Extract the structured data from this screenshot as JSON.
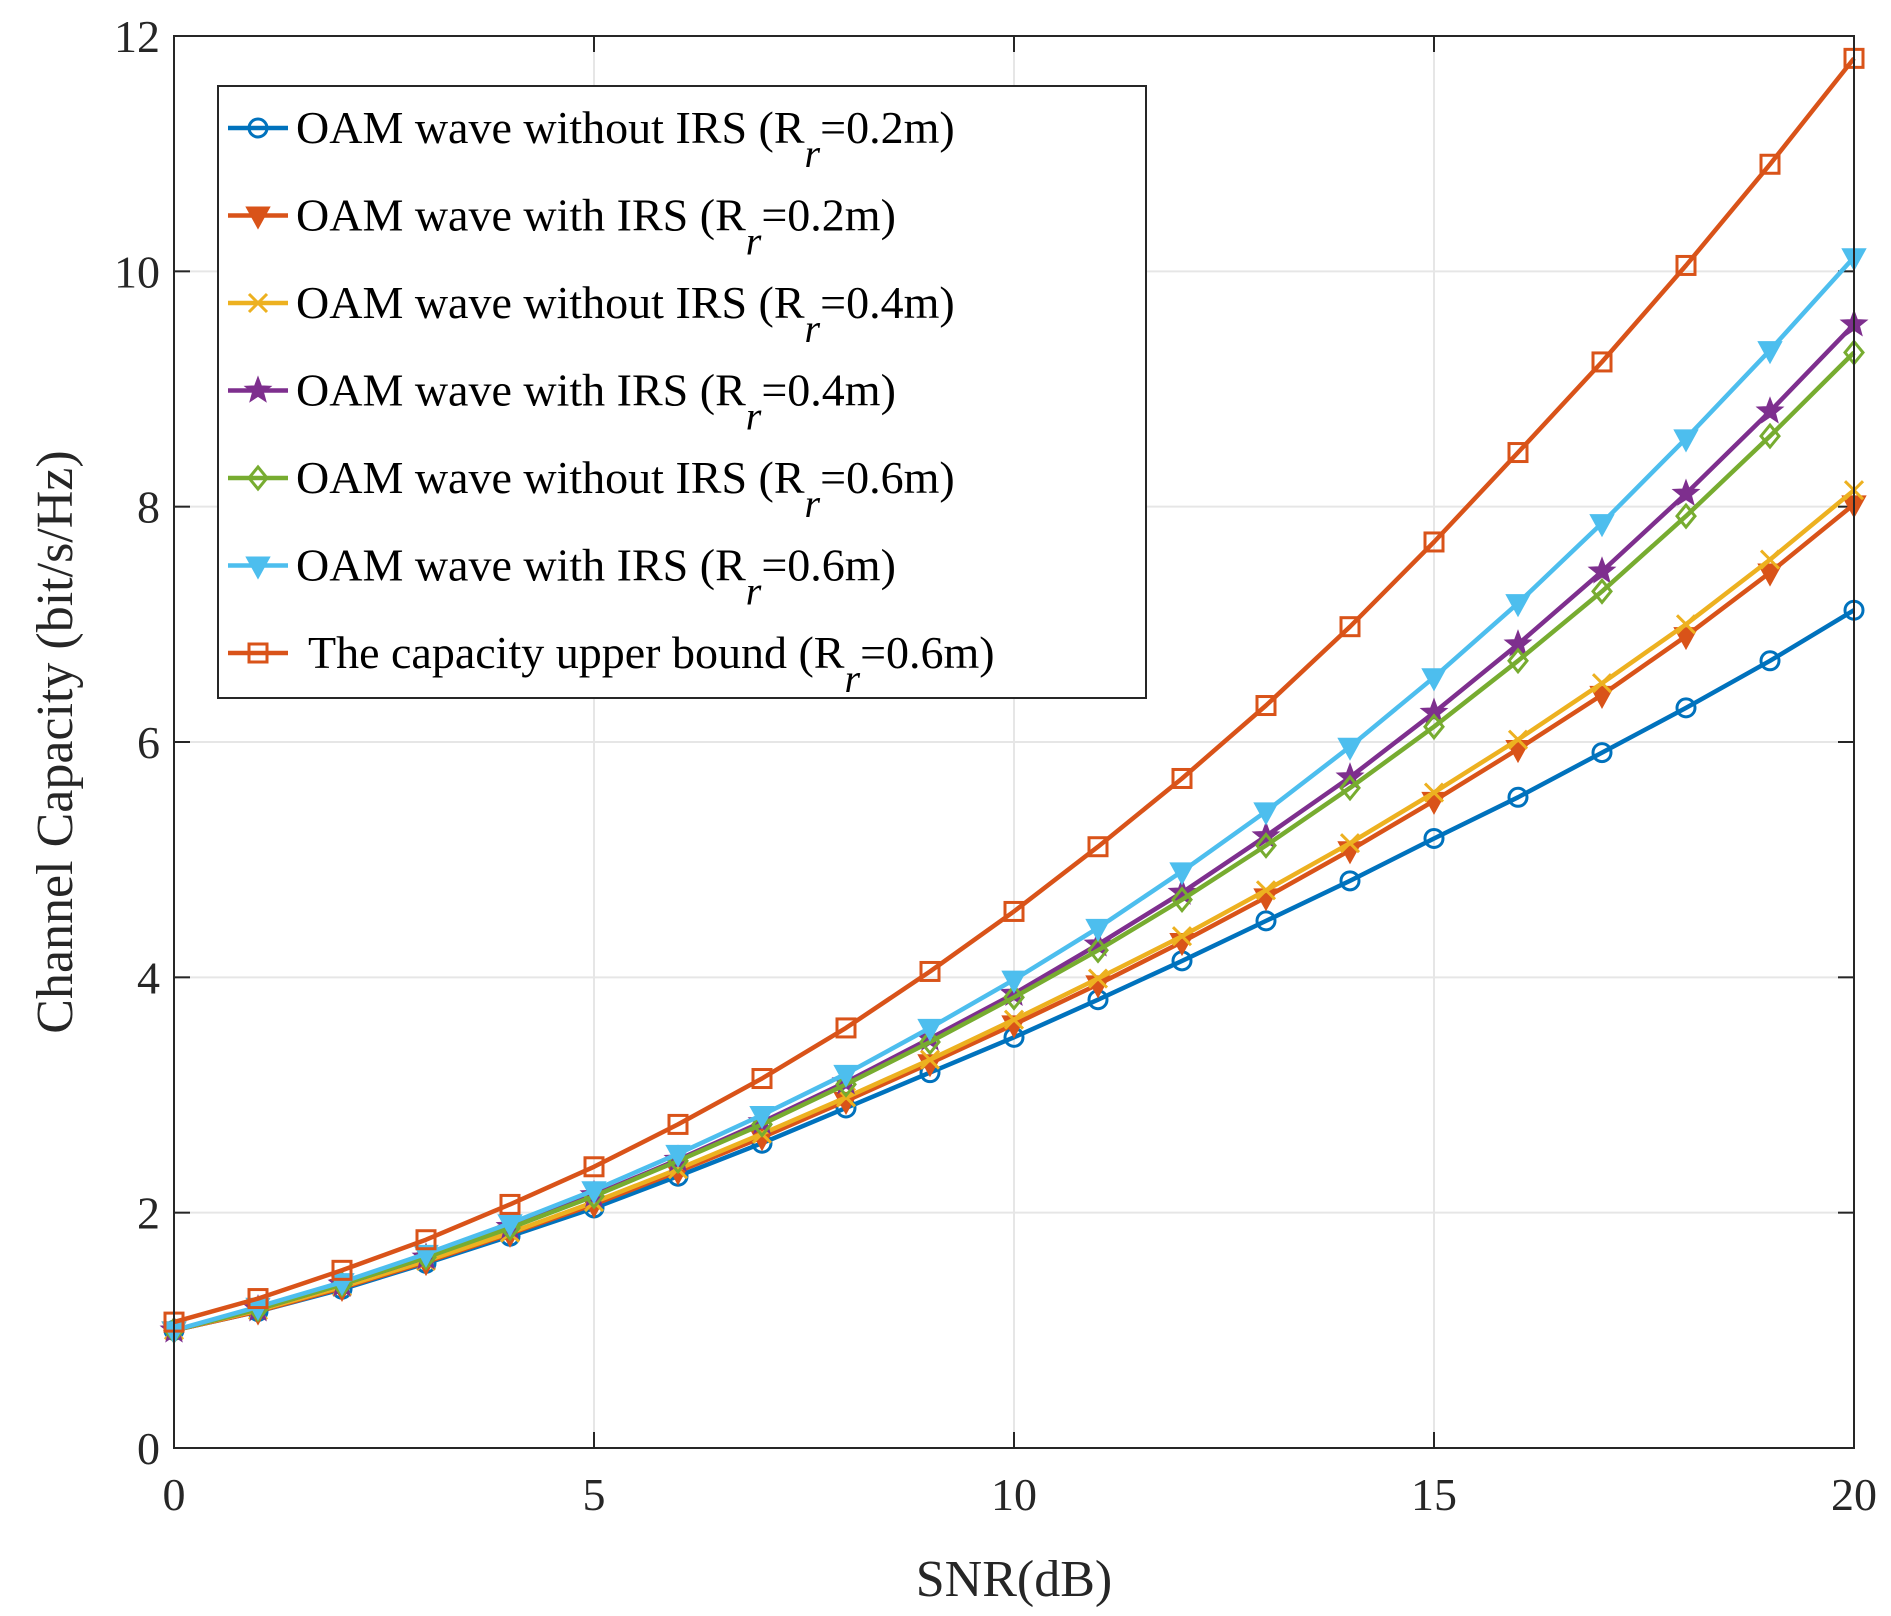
{
  "chart_data": {
    "type": "line",
    "title": "",
    "xlabel": "SNR(dB)",
    "ylabel": "Channel Capacity (bit/s/Hz)",
    "xlim": [
      0,
      20
    ],
    "ylim": [
      0,
      12
    ],
    "xticks": [
      "0",
      "5",
      "10",
      "15",
      "20"
    ],
    "yticks": [
      "0",
      "2",
      "4",
      "6",
      "8",
      "10",
      "12"
    ],
    "grid": true,
    "legend_position": "top-left",
    "x": [
      0,
      1,
      2,
      3,
      4,
      5,
      6,
      7,
      8,
      9,
      10,
      11,
      12,
      13,
      14,
      15,
      16,
      17,
      18,
      19,
      20
    ],
    "series": [
      {
        "name": "OAM wave without IRS (R_r=0.2m)",
        "label_main": "OAM wave without IRS (R",
        "label_sub": "r",
        "label_tail": "=0.2m)",
        "color": "#0072BD",
        "marker": "circle",
        "values": [
          1.0,
          1.16,
          1.35,
          1.57,
          1.8,
          2.04,
          2.31,
          2.59,
          2.89,
          3.19,
          3.49,
          3.81,
          4.14,
          4.48,
          4.82,
          5.18,
          5.53,
          5.91,
          6.29,
          6.69,
          7.12
        ]
      },
      {
        "name": "OAM wave with IRS (R_r=0.2m)",
        "label_main": "OAM wave with IRS (R",
        "label_sub": "r",
        "label_tail": "=0.2m)",
        "color": "#D95319",
        "marker": "triangle-down",
        "values": [
          1.0,
          1.16,
          1.36,
          1.58,
          1.82,
          2.07,
          2.35,
          2.64,
          2.95,
          3.27,
          3.6,
          3.94,
          4.3,
          4.68,
          5.08,
          5.5,
          5.94,
          6.4,
          6.9,
          7.44,
          8.02
        ]
      },
      {
        "name": "OAM wave without IRS (R_r=0.4m)",
        "label_main": "OAM wave without IRS (R",
        "label_sub": "r",
        "label_tail": "=0.4m)",
        "color": "#EDB120",
        "marker": "x",
        "values": [
          1.0,
          1.17,
          1.37,
          1.59,
          1.83,
          2.09,
          2.37,
          2.67,
          2.98,
          3.3,
          3.64,
          3.99,
          4.35,
          4.74,
          5.14,
          5.57,
          6.02,
          6.5,
          7.0,
          7.55,
          8.14
        ]
      },
      {
        "name": "OAM wave with IRS (R_r=0.4m)",
        "label_main": "OAM wave with IRS (R",
        "label_sub": "r",
        "label_tail": "=0.4m)",
        "color": "#7E2F8E",
        "marker": "star",
        "values": [
          1.0,
          1.18,
          1.39,
          1.62,
          1.88,
          2.15,
          2.45,
          2.77,
          3.11,
          3.48,
          3.86,
          4.28,
          4.72,
          5.2,
          5.7,
          6.25,
          6.83,
          7.45,
          8.11,
          8.81,
          9.55
        ]
      },
      {
        "name": "OAM wave without IRS (R_r=0.6m)",
        "label_main": "OAM wave without IRS (R",
        "label_sub": "r",
        "label_tail": "=0.6m)",
        "color": "#77AC30",
        "marker": "diamond",
        "values": [
          1.0,
          1.18,
          1.39,
          1.62,
          1.87,
          2.14,
          2.44,
          2.75,
          3.09,
          3.45,
          3.83,
          4.23,
          4.66,
          5.12,
          5.61,
          6.13,
          6.69,
          7.28,
          7.92,
          8.6,
          9.31
        ]
      },
      {
        "name": "OAM wave with IRS (R_r=0.6m)",
        "label_main": "OAM wave with IRS (R",
        "label_sub": "r",
        "label_tail": "=0.6m)",
        "color": "#4DBEEE",
        "marker": "triangle-down",
        "values": [
          1.0,
          1.2,
          1.41,
          1.65,
          1.91,
          2.19,
          2.5,
          2.83,
          3.18,
          3.57,
          3.98,
          4.42,
          4.9,
          5.41,
          5.96,
          6.55,
          7.18,
          7.86,
          8.58,
          9.33,
          10.12
        ]
      },
      {
        "name": "The capacity upper bound (R_r=0.6m)",
        "label_main": "The capacity upper bound  (R",
        "label_sub": "r",
        "label_tail": "=0.6m)",
        "color": "#D95319",
        "marker": "square",
        "values": [
          1.07,
          1.27,
          1.51,
          1.77,
          2.07,
          2.39,
          2.75,
          3.14,
          3.57,
          4.05,
          4.56,
          5.11,
          5.69,
          6.31,
          6.98,
          7.7,
          8.46,
          9.23,
          10.05,
          10.91,
          11.81
        ]
      }
    ]
  }
}
